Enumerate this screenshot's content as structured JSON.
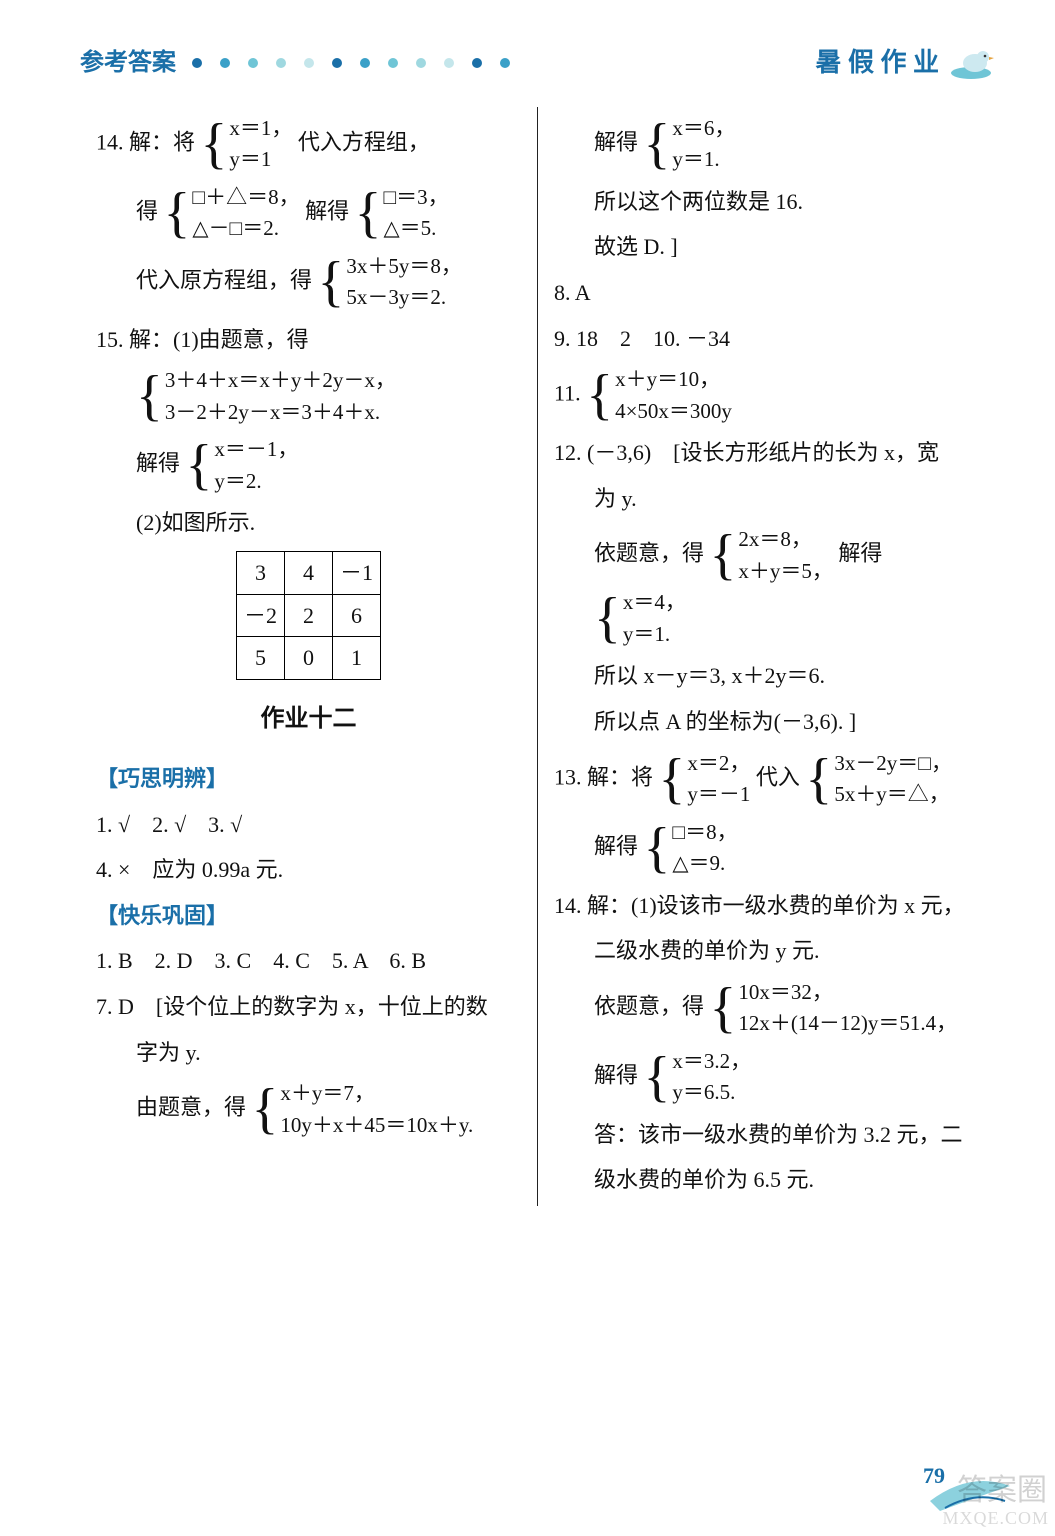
{
  "header": {
    "left": "参考答案",
    "right": "暑 假 作 业",
    "dot_colors": [
      "#1a6fa8",
      "#3aa0c8",
      "#6fc5d6",
      "#9fd8e0",
      "#c4e6eb",
      "#1a6fa8",
      "#3aa0c8",
      "#6fc5d6",
      "#9fd8e0",
      "#c4e6eb",
      "#1a6fa8",
      "#3aa0c8"
    ]
  },
  "left_col": {
    "l14_prefix": "14. 解：将",
    "l14_eq1": "x＝1，",
    "l14_eq2": "y＝1",
    "l14_suffix": " 代入方程组，",
    "l14b_prefix": "得",
    "l14b_eq1": "□＋△＝8，",
    "l14b_eq2": "△－□＝2.",
    "l14b_mid": "解得",
    "l14b_eq3": "□＝3，",
    "l14b_eq4": "△＝5.",
    "l14c_prefix": "代入原方程组，得",
    "l14c_eq1": "3x＋5y＝8，",
    "l14c_eq2": "5x－3y＝2.",
    "l15a": "15. 解：(1)由题意，得",
    "l15_eq1": "3＋4＋x＝x＋y＋2y－x，",
    "l15_eq2": "3－2＋2y－x＝3＋4＋x.",
    "l15c_prefix": "解得",
    "l15c_eq1": "x＝－1，",
    "l15c_eq2": "y＝2.",
    "l15d": "(2)如图所示.",
    "table": [
      [
        "3",
        "4",
        "－1"
      ],
      [
        "－2",
        "2",
        "6"
      ],
      [
        "5",
        "0",
        "1"
      ]
    ],
    "hw_title": "作业十二",
    "sec1": "【巧思明辨】",
    "s1_l1": "1. √　2. √　3. √",
    "s1_l2": "4. ×　应为 0.99a 元.",
    "sec2": "【快乐巩固】",
    "s2_l1": "1. B　2. D　3. C　4. C　5. A　6. B",
    "s2_l2a": "7. D　[设个位上的数字为 x，十位上的数",
    "s2_l2b": "字为 y.",
    "s2_l3_prefix": "由题意，得",
    "s2_l3_eq1": "x＋y＝7，",
    "s2_l3_eq2": "10y＋x＋45＝10x＋y."
  },
  "right_col": {
    "r0_prefix": "解得",
    "r0_eq1": "x＝6，",
    "r0_eq2": "y＝1.",
    "r1": "所以这个两位数是 16.",
    "r2": "故选 D. ]",
    "r3": "8. A",
    "r4": "9. 18　2　10. －34",
    "r5_prefix": "11.",
    "r5_eq1": "x＋y＝10，",
    "r5_eq2": "4×50x＝300y",
    "r6a": "12. (－3,6)　[设长方形纸片的长为 x，宽",
    "r6b": "为 y.",
    "r6c_prefix": "依题意，得",
    "r6c_eq1": "2x＝8，",
    "r6c_eq2": "x＋y＝5，",
    "r6c_mid": "解得",
    "r6c_eq3": "x＝4，",
    "r6c_eq4": "y＝1.",
    "r6d": "所以 x－y＝3, x＋2y＝6.",
    "r6e": "所以点 A 的坐标为(－3,6). ]",
    "r7_prefix": "13. 解：将",
    "r7_eq1": "x＝2，",
    "r7_eq2": "y＝－1",
    "r7_mid": " 代入",
    "r7_eq3": "3x－2y＝□，",
    "r7_eq4": "5x＋y＝△，",
    "r7b_prefix": "解得",
    "r7b_eq1": "□＝8，",
    "r7b_eq2": "△＝9.",
    "r8a": "14. 解：(1)设该市一级水费的单价为 x 元，",
    "r8b": "二级水费的单价为 y 元.",
    "r8c_prefix": "依题意，得",
    "r8c_eq1": "10x＝32，",
    "r8c_eq2": "12x＋(14－12)y＝51.4，",
    "r8d_prefix": "解得",
    "r8d_eq1": "x＝3.2，",
    "r8d_eq2": "y＝6.5.",
    "r8e": "答：该市一级水费的单价为 3.2 元，二",
    "r8f": "级水费的单价为 6.5 元."
  },
  "footer": {
    "page": "79",
    "wm1": "答案圈",
    "wm2": "MXQE.COM"
  }
}
